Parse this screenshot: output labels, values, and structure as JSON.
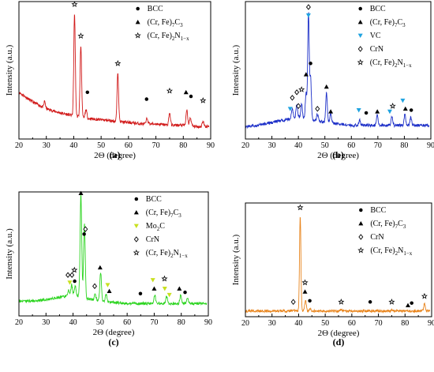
{
  "chart_data": [
    {
      "type": "line",
      "panel_label": "(a)",
      "color": "#d11a1a",
      "xlabel": "2Θ (degree)",
      "ylabel": "Intensity (a.u.)",
      "xlim": [
        20,
        90
      ],
      "xticks": [
        "20",
        "30",
        "40",
        "50",
        "60",
        "70",
        "80",
        "90"
      ],
      "baseline": {
        "x": [
          20,
          25,
          30,
          35,
          40,
          45,
          50,
          55,
          60,
          65,
          70,
          75,
          80,
          85,
          89
        ],
        "y": [
          0.34,
          0.27,
          0.22,
          0.19,
          0.17,
          0.15,
          0.14,
          0.13,
          0.12,
          0.11,
          0.11,
          0.1,
          0.1,
          0.09,
          0.09
        ]
      },
      "peaks": [
        {
          "x": 29.4,
          "y": 0.05,
          "w": 0.25
        },
        {
          "x": 40.3,
          "y": 0.74,
          "w": 0.28
        },
        {
          "x": 42.6,
          "y": 0.52,
          "w": 0.28
        },
        {
          "x": 44.5,
          "y": 0.06,
          "w": 0.3
        },
        {
          "x": 56.1,
          "y": 0.36,
          "w": 0.28
        },
        {
          "x": 66.8,
          "y": 0.04,
          "w": 0.3
        },
        {
          "x": 75.0,
          "y": 0.09,
          "w": 0.3
        },
        {
          "x": 81.3,
          "y": 0.11,
          "w": 0.3
        },
        {
          "x": 82.6,
          "y": 0.06,
          "w": 0.3
        },
        {
          "x": 87.2,
          "y": 0.04,
          "w": 0.3
        }
      ],
      "markers": [
        {
          "x": 40.3,
          "y": 0.98,
          "symbol": "star"
        },
        {
          "x": 42.6,
          "y": 0.75,
          "symbol": "star"
        },
        {
          "x": 45.0,
          "y": 0.34,
          "symbol": "circle"
        },
        {
          "x": 56.1,
          "y": 0.55,
          "symbol": "star"
        },
        {
          "x": 66.6,
          "y": 0.29,
          "symbol": "circle"
        },
        {
          "x": 75.0,
          "y": 0.35,
          "symbol": "star"
        },
        {
          "x": 81.0,
          "y": 0.34,
          "symbol": "triangle"
        },
        {
          "x": 82.8,
          "y": 0.31,
          "symbol": "circle"
        },
        {
          "x": 87.2,
          "y": 0.28,
          "symbol": "star"
        }
      ],
      "legend": [
        {
          "symbol": "circle",
          "label": "BCC"
        },
        {
          "symbol": "triangle",
          "label": "(Cr, Fe)",
          "sub1": "7",
          "mid": "C",
          "sub2": "3"
        },
        {
          "symbol": "star",
          "label": "(Cr, Fe)",
          "sub1": "2",
          "mid": "N",
          "sub2": "1−x"
        }
      ]
    },
    {
      "type": "line",
      "panel_label": "(b)",
      "color": "#1c2fc8",
      "xlabel": "2Θ (degree)",
      "ylabel": "Intensity (a.u.)",
      "xlim": [
        20,
        90
      ],
      "xticks": [
        "20",
        "30",
        "40",
        "50",
        "60",
        "70",
        "80",
        "90"
      ],
      "baseline": {
        "x": [
          20,
          25,
          30,
          35,
          40,
          45,
          50,
          55,
          60,
          65,
          70,
          75,
          80,
          85,
          89
        ],
        "y": [
          0.09,
          0.1,
          0.12,
          0.14,
          0.16,
          0.14,
          0.12,
          0.11,
          0.1,
          0.1,
          0.1,
          0.1,
          0.1,
          0.1,
          0.1
        ]
      },
      "peaks": [
        {
          "x": 37.7,
          "y": 0.07,
          "w": 0.3
        },
        {
          "x": 39.4,
          "y": 0.09,
          "w": 0.3
        },
        {
          "x": 41.2,
          "y": 0.1,
          "w": 0.3
        },
        {
          "x": 42.9,
          "y": 0.18,
          "w": 0.3
        },
        {
          "x": 43.8,
          "y": 0.78,
          "w": 0.28
        },
        {
          "x": 44.6,
          "y": 0.3,
          "w": 0.3
        },
        {
          "x": 47.2,
          "y": 0.05,
          "w": 0.3
        },
        {
          "x": 50.6,
          "y": 0.22,
          "w": 0.3
        },
        {
          "x": 52.2,
          "y": 0.07,
          "w": 0.3
        },
        {
          "x": 63.1,
          "y": 0.04,
          "w": 0.3
        },
        {
          "x": 69.8,
          "y": 0.07,
          "w": 0.3
        },
        {
          "x": 75.3,
          "y": 0.07,
          "w": 0.3
        },
        {
          "x": 80.2,
          "y": 0.08,
          "w": 0.3
        },
        {
          "x": 82.4,
          "y": 0.06,
          "w": 0.3
        }
      ],
      "markers": [
        {
          "x": 43.8,
          "y": 0.96,
          "symbol": "diamond"
        },
        {
          "x": 43.8,
          "y": 0.9,
          "symbol": "down-triangle"
        },
        {
          "x": 42.9,
          "y": 0.47,
          "symbol": "triangle"
        },
        {
          "x": 44.6,
          "y": 0.55,
          "symbol": "circle"
        },
        {
          "x": 37.7,
          "y": 0.3,
          "symbol": "diamond"
        },
        {
          "x": 39.4,
          "y": 0.34,
          "symbol": "diamond"
        },
        {
          "x": 41.2,
          "y": 0.36,
          "symbol": "star"
        },
        {
          "x": 36.9,
          "y": 0.22,
          "symbol": "down-triangle"
        },
        {
          "x": 40.0,
          "y": 0.24,
          "symbol": "diamond"
        },
        {
          "x": 47.2,
          "y": 0.22,
          "symbol": "diamond"
        },
        {
          "x": 50.6,
          "y": 0.38,
          "symbol": "triangle"
        },
        {
          "x": 52.2,
          "y": 0.2,
          "symbol": "triangle"
        },
        {
          "x": 62.8,
          "y": 0.21,
          "symbol": "down-triangle"
        },
        {
          "x": 65.6,
          "y": 0.19,
          "symbol": "circle"
        },
        {
          "x": 69.8,
          "y": 0.2,
          "symbol": "triangle"
        },
        {
          "x": 74.5,
          "y": 0.2,
          "symbol": "down-triangle"
        },
        {
          "x": 75.6,
          "y": 0.24,
          "symbol": "star"
        },
        {
          "x": 79.4,
          "y": 0.28,
          "symbol": "down-triangle"
        },
        {
          "x": 80.4,
          "y": 0.22,
          "symbol": "triangle"
        },
        {
          "x": 82.6,
          "y": 0.21,
          "symbol": "circle"
        }
      ],
      "legend": [
        {
          "symbol": "circle",
          "label": "BCC"
        },
        {
          "symbol": "triangle",
          "label": "(Cr, Fe)",
          "sub1": "7",
          "mid": "C",
          "sub2": "3"
        },
        {
          "symbol": "down-triangle",
          "label": "VC"
        },
        {
          "symbol": "diamond",
          "label": "CrN"
        },
        {
          "symbol": "star",
          "label": "(Cr, Fe)",
          "sub1": "2",
          "mid": "N",
          "sub2": "1−x"
        }
      ]
    },
    {
      "type": "line",
      "panel_label": "(c)",
      "color": "#2bd41f",
      "xlabel": "2Θ (degree)",
      "ylabel": "Intensity (a.u.)",
      "xlim": [
        20,
        90
      ],
      "xticks": [
        "20",
        "30",
        "40",
        "50",
        "60",
        "70",
        "80",
        "90"
      ],
      "baseline": {
        "x": [
          20,
          25,
          30,
          35,
          40,
          45,
          50,
          55,
          60,
          65,
          70,
          75,
          80,
          85,
          89
        ],
        "y": [
          0.12,
          0.12,
          0.13,
          0.15,
          0.17,
          0.14,
          0.12,
          0.11,
          0.1,
          0.1,
          0.1,
          0.1,
          0.1,
          0.1,
          0.1
        ]
      },
      "peaks": [
        {
          "x": 38.4,
          "y": 0.04,
          "w": 0.3
        },
        {
          "x": 39.5,
          "y": 0.08,
          "w": 0.3
        },
        {
          "x": 40.8,
          "y": 0.08,
          "w": 0.3
        },
        {
          "x": 42.9,
          "y": 0.82,
          "w": 0.3
        },
        {
          "x": 44.2,
          "y": 0.6,
          "w": 0.3
        },
        {
          "x": 48.2,
          "y": 0.05,
          "w": 0.3
        },
        {
          "x": 50.2,
          "y": 0.23,
          "w": 0.3
        },
        {
          "x": 52.2,
          "y": 0.06,
          "w": 0.3
        },
        {
          "x": 70.2,
          "y": 0.07,
          "w": 0.3
        },
        {
          "x": 74.6,
          "y": 0.06,
          "w": 0.3
        },
        {
          "x": 79.8,
          "y": 0.07,
          "w": 0.3
        },
        {
          "x": 82.3,
          "y": 0.05,
          "w": 0.3
        }
      ],
      "markers": [
        {
          "x": 42.9,
          "y": 0.99,
          "symbol": "triangle"
        },
        {
          "x": 44.6,
          "y": 0.7,
          "symbol": "diamond"
        },
        {
          "x": 44.1,
          "y": 0.66,
          "symbol": "circle"
        },
        {
          "x": 38.1,
          "y": 0.33,
          "symbol": "diamond"
        },
        {
          "x": 39.6,
          "y": 0.33,
          "symbol": "diamond"
        },
        {
          "x": 40.5,
          "y": 0.37,
          "symbol": "star"
        },
        {
          "x": 38.8,
          "y": 0.27,
          "symbol": "yellow-down-triangle"
        },
        {
          "x": 40.6,
          "y": 0.28,
          "symbol": "circle"
        },
        {
          "x": 48.0,
          "y": 0.24,
          "symbol": "diamond"
        },
        {
          "x": 50.0,
          "y": 0.39,
          "symbol": "triangle"
        },
        {
          "x": 52.8,
          "y": 0.25,
          "symbol": "yellow-down-triangle"
        },
        {
          "x": 53.4,
          "y": 0.2,
          "symbol": "triangle"
        },
        {
          "x": 64.9,
          "y": 0.18,
          "symbol": "circle"
        },
        {
          "x": 69.5,
          "y": 0.29,
          "symbol": "yellow-down-triangle"
        },
        {
          "x": 70.0,
          "y": 0.22,
          "symbol": "triangle"
        },
        {
          "x": 73.8,
          "y": 0.3,
          "symbol": "star"
        },
        {
          "x": 73.9,
          "y": 0.22,
          "symbol": "yellow-down-triangle"
        },
        {
          "x": 75.6,
          "y": 0.17,
          "symbol": "yellow-down-triangle"
        },
        {
          "x": 79.3,
          "y": 0.22,
          "symbol": "triangle"
        },
        {
          "x": 81.4,
          "y": 0.19,
          "symbol": "circle"
        }
      ],
      "legend": [
        {
          "symbol": "circle",
          "label": "BCC"
        },
        {
          "symbol": "triangle",
          "label": "(Cr, Fe)",
          "sub1": "7",
          "mid": "C",
          "sub2": "3"
        },
        {
          "symbol": "yellow-down-triangle",
          "label": "Mo",
          "sub1": "2",
          "mid": "C",
          "sub2": ""
        },
        {
          "symbol": "diamond",
          "label": "CrN"
        },
        {
          "symbol": "star",
          "label": "(Cr, Fe)",
          "sub1": "2",
          "mid": "N",
          "sub2": "1−x"
        }
      ]
    },
    {
      "type": "line",
      "panel_label": "(d)",
      "color": "#e8841c",
      "xlabel": "2Θ (degree)",
      "ylabel": "Intensity (a.u.)",
      "xlim": [
        20,
        90
      ],
      "xticks": [
        "20",
        "30",
        "40",
        "50",
        "60",
        "70",
        "80",
        "90"
      ],
      "baseline": {
        "x": [
          20,
          30,
          40,
          50,
          60,
          70,
          80,
          89
        ],
        "y": [
          0.05,
          0.05,
          0.05,
          0.05,
          0.05,
          0.05,
          0.05,
          0.05
        ]
      },
      "peaks": [
        {
          "x": 38.3,
          "y": 0.01,
          "w": 0.3
        },
        {
          "x": 40.6,
          "y": 0.84,
          "w": 0.26
        },
        {
          "x": 42.6,
          "y": 0.09,
          "w": 0.3
        },
        {
          "x": 44.3,
          "y": 0.02,
          "w": 0.3
        },
        {
          "x": 56.0,
          "y": 0.01,
          "w": 0.3
        },
        {
          "x": 75.0,
          "y": 0.01,
          "w": 0.3
        },
        {
          "x": 87.3,
          "y": 0.06,
          "w": 0.3
        }
      ],
      "markers": [
        {
          "x": 40.6,
          "y": 0.96,
          "symbol": "star"
        },
        {
          "x": 42.4,
          "y": 0.3,
          "symbol": "star"
        },
        {
          "x": 42.4,
          "y": 0.22,
          "symbol": "triangle"
        },
        {
          "x": 38.0,
          "y": 0.13,
          "symbol": "diamond"
        },
        {
          "x": 44.2,
          "y": 0.14,
          "symbol": "circle"
        },
        {
          "x": 56.0,
          "y": 0.13,
          "symbol": "star"
        },
        {
          "x": 66.9,
          "y": 0.13,
          "symbol": "circle"
        },
        {
          "x": 75.0,
          "y": 0.13,
          "symbol": "star"
        },
        {
          "x": 81.1,
          "y": 0.1,
          "symbol": "triangle"
        },
        {
          "x": 82.5,
          "y": 0.12,
          "symbol": "circle"
        },
        {
          "x": 87.3,
          "y": 0.18,
          "symbol": "star"
        }
      ],
      "legend": [
        {
          "symbol": "circle",
          "label": "BCC"
        },
        {
          "symbol": "triangle",
          "label": "(Cr, Fe)",
          "sub1": "7",
          "mid": "C",
          "sub2": "3"
        },
        {
          "symbol": "diamond",
          "label": "CrN"
        },
        {
          "symbol": "star",
          "label": "(Cr, Fe)",
          "sub1": "2",
          "mid": "N",
          "sub2": "1−x"
        }
      ]
    }
  ]
}
